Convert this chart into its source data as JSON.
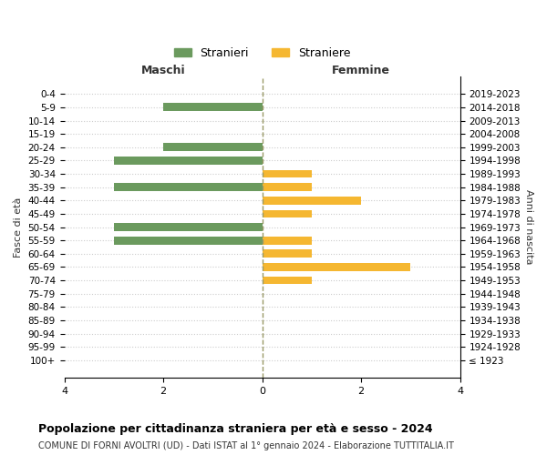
{
  "age_groups": [
    "100+",
    "95-99",
    "90-94",
    "85-89",
    "80-84",
    "75-79",
    "70-74",
    "65-69",
    "60-64",
    "55-59",
    "50-54",
    "45-49",
    "40-44",
    "35-39",
    "30-34",
    "25-29",
    "20-24",
    "15-19",
    "10-14",
    "5-9",
    "0-4"
  ],
  "birth_years": [
    "≤ 1923",
    "1924-1928",
    "1929-1933",
    "1934-1938",
    "1939-1943",
    "1944-1948",
    "1949-1953",
    "1954-1958",
    "1959-1963",
    "1964-1968",
    "1969-1973",
    "1974-1978",
    "1979-1983",
    "1984-1988",
    "1989-1993",
    "1994-1998",
    "1999-2003",
    "2004-2008",
    "2009-2013",
    "2014-2018",
    "2019-2023"
  ],
  "males": [
    0,
    0,
    0,
    0,
    0,
    0,
    0,
    0,
    0,
    3,
    3,
    0,
    0,
    3,
    0,
    3,
    2,
    0,
    0,
    2,
    0
  ],
  "females": [
    0,
    0,
    0,
    0,
    0,
    0,
    1,
    3,
    1,
    1,
    0,
    1,
    2,
    1,
    1,
    0,
    0,
    0,
    0,
    0,
    0
  ],
  "male_color": "#6b9a5e",
  "female_color": "#f5b731",
  "male_label": "Stranieri",
  "female_label": "Straniere",
  "title": "Popolazione per cittadinanza straniera per età e sesso - 2024",
  "subtitle": "COMUNE DI FORNI AVOLTRI (UD) - Dati ISTAT al 1° gennaio 2024 - Elaborazione TUTTITALIA.IT",
  "xlabel_left": "Maschi",
  "xlabel_right": "Femmine",
  "ylabel_left": "Fasce di età",
  "ylabel_right": "Anni di nascita",
  "xlim": 4,
  "background_color": "#ffffff",
  "grid_color": "#cccccc",
  "center_line_color": "#999966"
}
